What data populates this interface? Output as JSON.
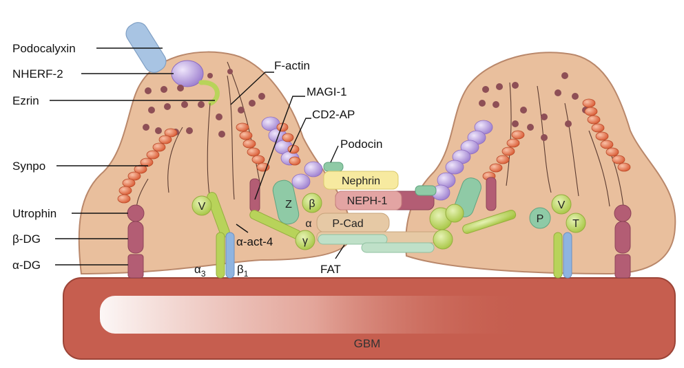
{
  "labels": {
    "podocalyxin": "Podocalyxin",
    "nherf2": "NHERF-2",
    "ezrin": "Ezrin",
    "synpo": "Synpo",
    "utrophin": "Utrophin",
    "beta_dg": "β-DG",
    "alpha_dg": "α-DG",
    "factin": "F-actin",
    "magi1": "MAGI-1",
    "cd2ap": "CD2-AP",
    "podocin": "Podocin",
    "nephrin": "Nephrin",
    "neph1": "NEPH-1",
    "pcad": "P-Cad",
    "fat": "FAT",
    "alpha_act4": "α-act-4",
    "alpha3_base": "α",
    "alpha3_sub": "3",
    "beta1_base": "β",
    "beta1_sub": "1",
    "gbm": "GBM"
  },
  "circle_labels": {
    "v_left": "V",
    "z": "Z",
    "beta": "β",
    "alpha": "α",
    "gamma": "γ",
    "p": "P",
    "v_right": "V",
    "t": "T"
  },
  "colors": {
    "cell_fill": "#e9bf9d",
    "cell_stroke": "#b9876a",
    "gbm_fill": "#c65e4f",
    "dot": "#8e4f56",
    "synpo": "#e06b43",
    "purple": "#b49bd6",
    "green": "#b8d35a",
    "membrane_protein": "#b35d74",
    "podocalyxin": "#a8c4e3",
    "nephrin": "#f7eaa0",
    "neph1": "#e3a4a3",
    "pcad": "#e6c9a5",
    "teal": "#8fcaa6"
  }
}
